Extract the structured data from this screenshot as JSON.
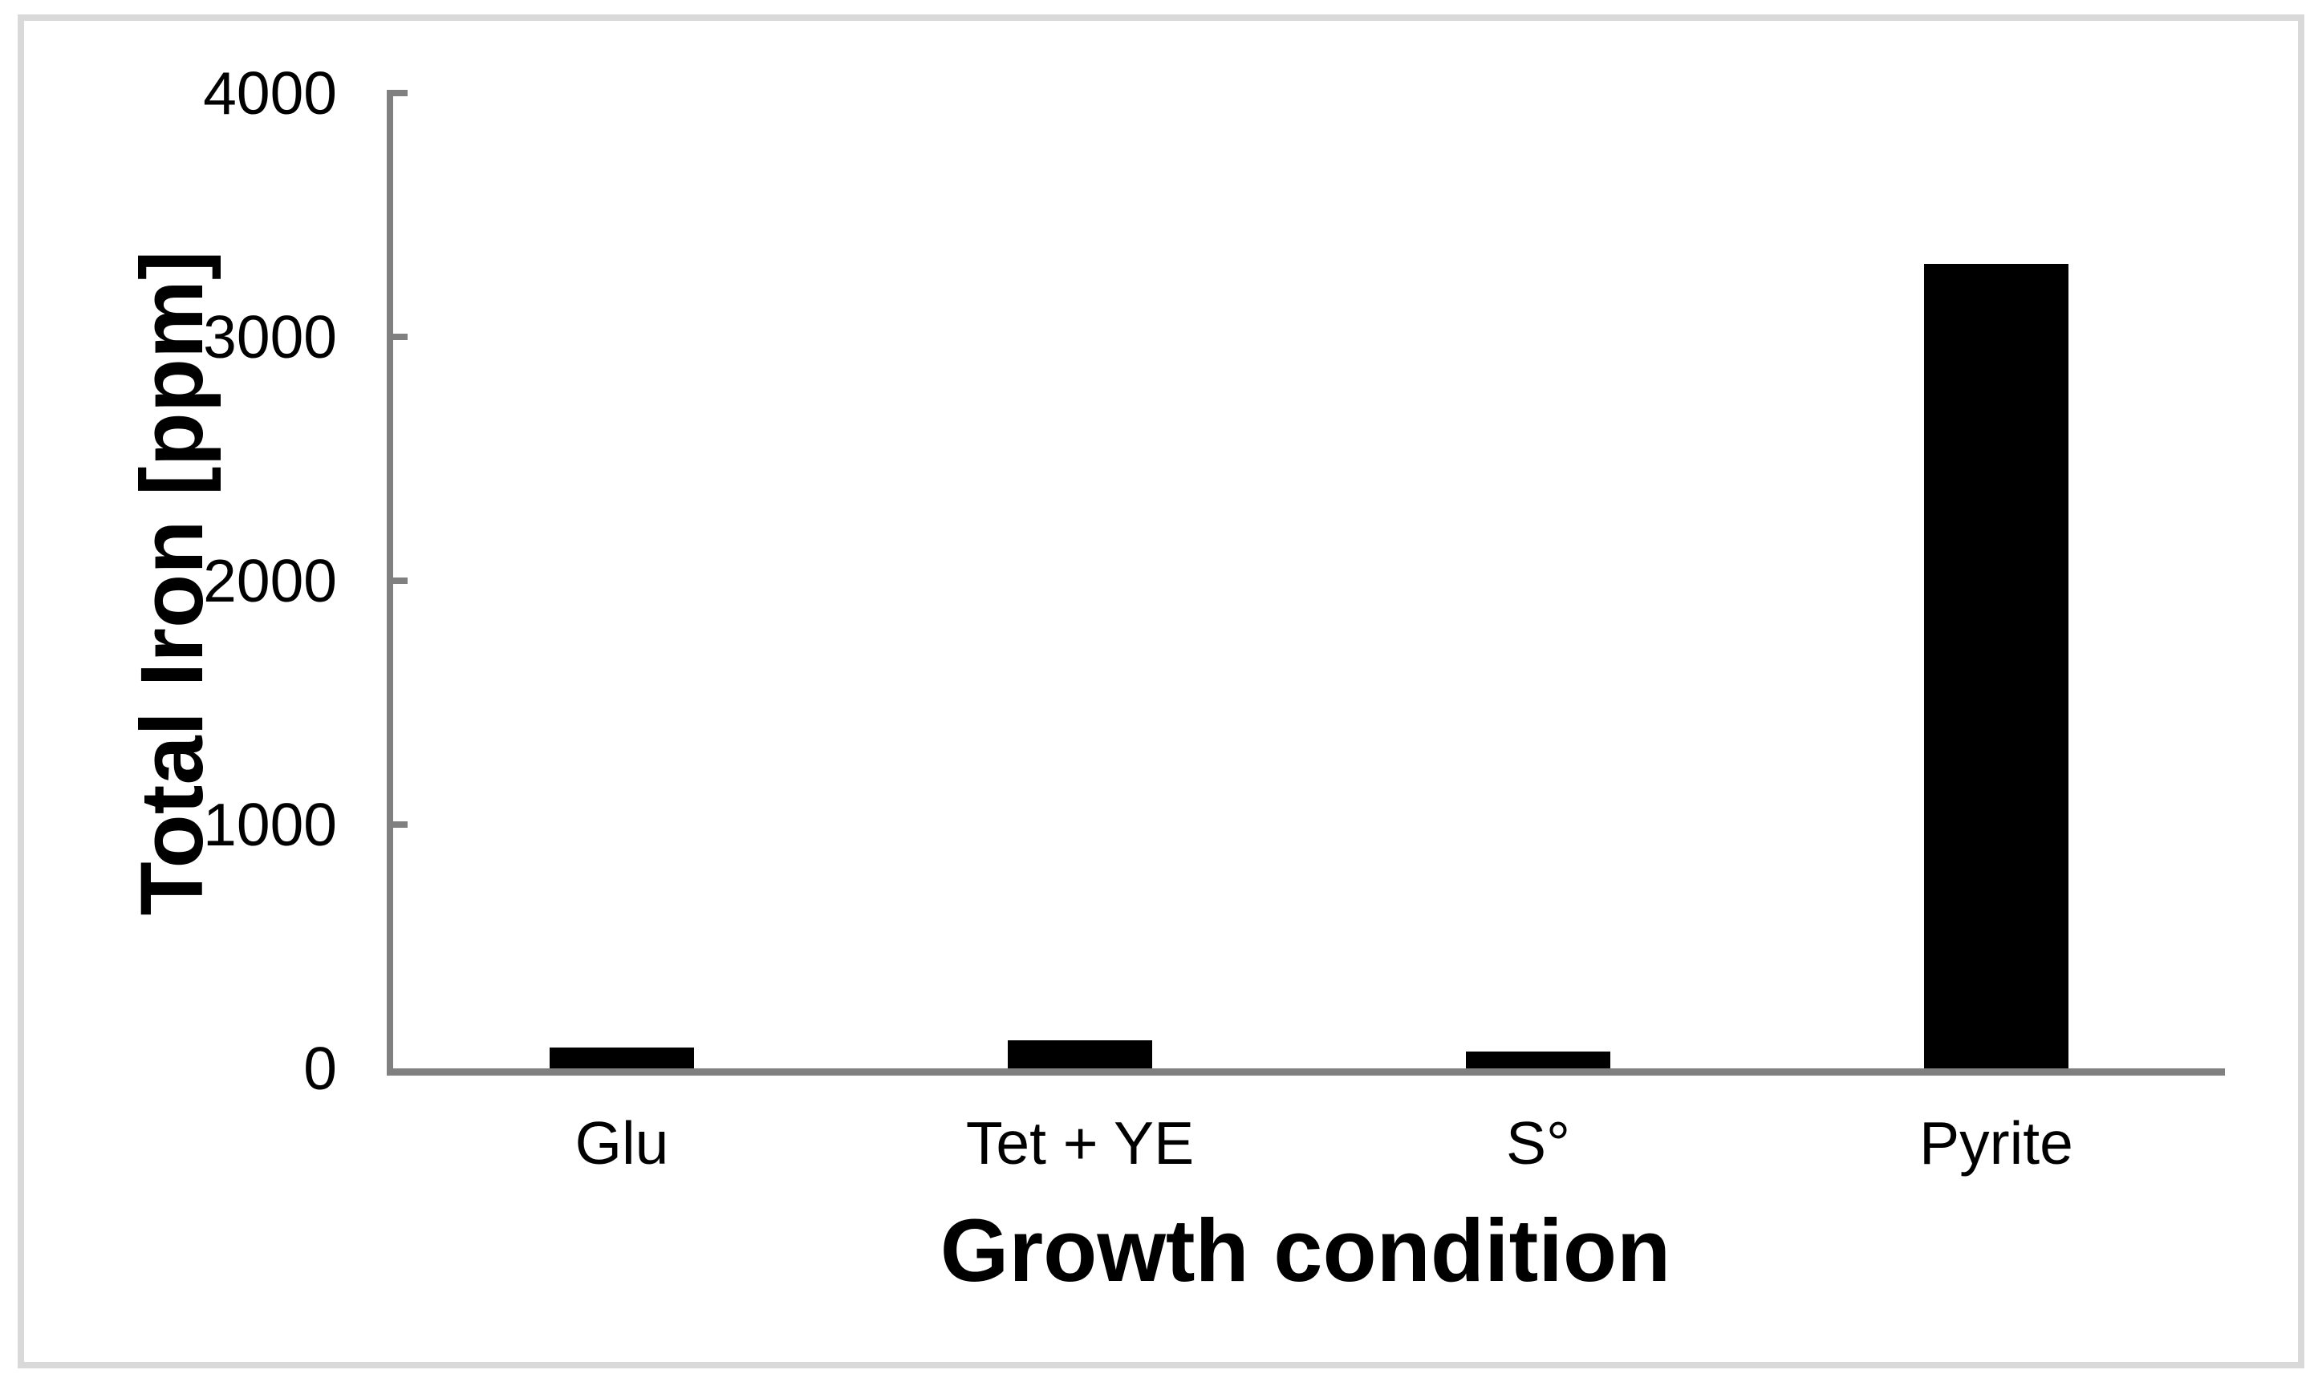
{
  "figure": {
    "background": "#ffffff",
    "border_color": "#d9d9d9",
    "axis_color": "#808080",
    "text_color": "#000000"
  },
  "chart_data": {
    "type": "bar",
    "title": "",
    "categories": [
      "Glu",
      "Tet + YE",
      "S°",
      "Pyrite"
    ],
    "values": [
      85,
      115,
      70,
      3300
    ],
    "bar_color": "#000000",
    "xlabel": "Growth condition",
    "ylabel": "Total Iron [ppm]",
    "ylim": [
      0,
      4000
    ],
    "yticks": [
      0,
      1000,
      2000,
      3000,
      4000
    ],
    "ytick_labels": [
      "0",
      "1000",
      "2000",
      "3000",
      "4000"
    ],
    "grid": false,
    "legend": false
  }
}
